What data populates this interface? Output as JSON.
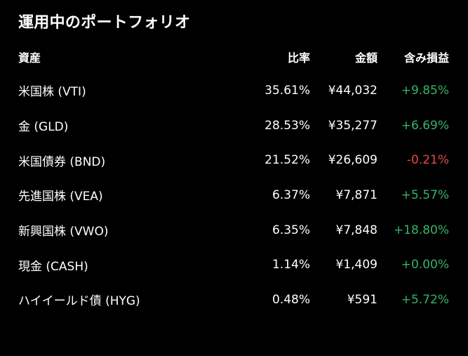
{
  "title": "運用中のポートフォリオ",
  "headers": {
    "asset": "資産",
    "ratio": "比率",
    "amount": "金額",
    "gain": "含み損益"
  },
  "colors": {
    "background": "#000000",
    "text": "#ffffff",
    "positive": "#35b36b",
    "negative": "#e5484d"
  },
  "rows": [
    {
      "asset": "米国株 (VTI)",
      "ratio": "35.61%",
      "amount": "¥44,032",
      "gain": "+9.85%",
      "trend": "positive"
    },
    {
      "asset": "金 (GLD)",
      "ratio": "28.53%",
      "amount": "¥35,277",
      "gain": "+6.69%",
      "trend": "positive"
    },
    {
      "asset": "米国債券 (BND)",
      "ratio": "21.52%",
      "amount": "¥26,609",
      "gain": "-0.21%",
      "trend": "negative"
    },
    {
      "asset": "先進国株 (VEA)",
      "ratio": "6.37%",
      "amount": "¥7,871",
      "gain": "+5.57%",
      "trend": "positive"
    },
    {
      "asset": "新興国株 (VWO)",
      "ratio": "6.35%",
      "amount": "¥7,848",
      "gain": "+18.80%",
      "trend": "positive"
    },
    {
      "asset": "現金 (CASH)",
      "ratio": "1.14%",
      "amount": "¥1,409",
      "gain": "+0.00%",
      "trend": "positive"
    },
    {
      "asset": "ハイイールド債 (HYG)",
      "ratio": "0.48%",
      "amount": "¥591",
      "gain": "+5.72%",
      "trend": "positive"
    }
  ]
}
